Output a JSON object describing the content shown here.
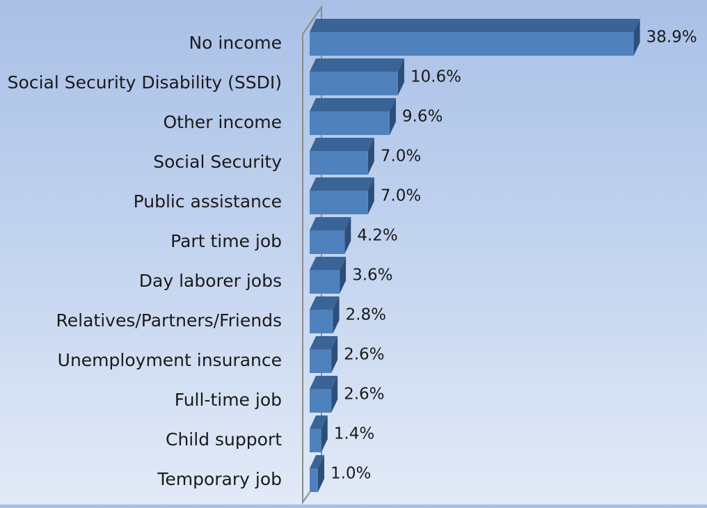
{
  "chart_data": {
    "type": "bar",
    "orientation": "horizontal",
    "style": "3d",
    "categories": [
      "No income",
      "Social Security Disability (SSDI)",
      "Other income",
      "Social Security",
      "Public assistance",
      "Part time job",
      "Day laborer jobs",
      "Relatives/Partners/Friends",
      "Unemployment insurance",
      "Full-time job",
      "Child support",
      "Temporary job"
    ],
    "values": [
      38.9,
      10.6,
      9.6,
      7.0,
      7.0,
      4.2,
      3.6,
      2.8,
      2.6,
      2.6,
      1.4,
      1.0
    ],
    "value_labels": [
      "38.9%",
      "10.6%",
      "9.6%",
      "7.0%",
      "7.0%",
      "4.2%",
      "3.6%",
      "2.8%",
      "2.6%",
      "2.6%",
      "1.4%",
      "1.0%"
    ],
    "unit": "%",
    "title": "",
    "xlabel": "",
    "ylabel": "",
    "xlim": [
      0,
      40
    ],
    "grid": false,
    "legend": "none",
    "colors": {
      "bar_front": "#4f81bd",
      "bar_top": "#3a6496",
      "bar_side": "#2c4f7a",
      "axis_line": "#8c8c8c",
      "background_top": "#a9c0e6",
      "background_bottom": "#e2eaf7"
    }
  }
}
